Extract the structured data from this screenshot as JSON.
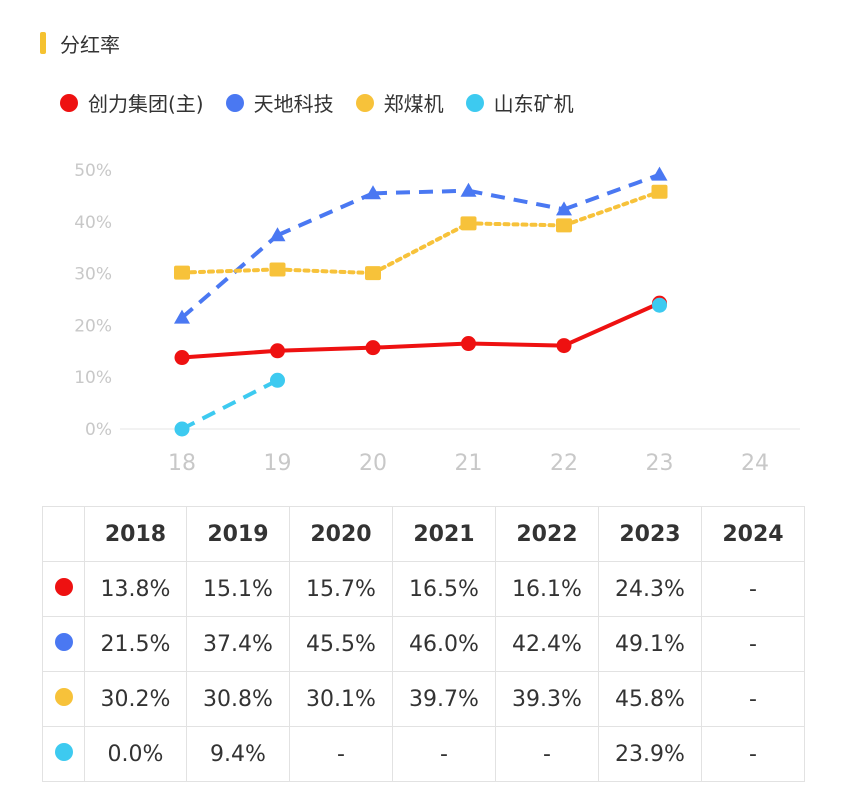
{
  "title": "分红率",
  "legend": [
    {
      "label": "创力集团(主)",
      "color": "#ee1111"
    },
    {
      "label": "天地科技",
      "color": "#4a78f2"
    },
    {
      "label": "郑煤机",
      "color": "#f7c23a"
    },
    {
      "label": "山东矿机",
      "color": "#3dcaf0"
    }
  ],
  "chart_data": {
    "type": "line",
    "x": [
      "18",
      "19",
      "20",
      "21",
      "22",
      "23",
      "24"
    ],
    "y_ticks": [
      "0%",
      "10%",
      "20%",
      "30%",
      "40%",
      "50%"
    ],
    "ylim": [
      0,
      50
    ],
    "grid": false,
    "legend_position": "top-left",
    "series": [
      {
        "name": "创力集团(主)",
        "color": "#ee1111",
        "style": "solid",
        "marker": "circle",
        "values": [
          13.8,
          15.1,
          15.7,
          16.5,
          16.1,
          24.3,
          null
        ]
      },
      {
        "name": "天地科技",
        "color": "#4a78f2",
        "style": "dashed",
        "marker": "triangle",
        "values": [
          21.5,
          37.4,
          45.5,
          46.0,
          42.4,
          49.1,
          null
        ]
      },
      {
        "name": "郑煤机",
        "color": "#f7c23a",
        "style": "dotted",
        "marker": "square",
        "values": [
          30.2,
          30.8,
          30.1,
          39.7,
          39.3,
          45.8,
          null
        ]
      },
      {
        "name": "山东矿机",
        "color": "#3dcaf0",
        "style": "dashed",
        "marker": "circle",
        "values": [
          0.0,
          9.4,
          null,
          null,
          null,
          23.9,
          null
        ]
      }
    ]
  },
  "table": {
    "headers": [
      "",
      "2018",
      "2019",
      "2020",
      "2021",
      "2022",
      "2023",
      "2024"
    ],
    "rows": [
      {
        "color": "#ee1111",
        "cells": [
          "13.8%",
          "15.1%",
          "15.7%",
          "16.5%",
          "16.1%",
          "24.3%",
          "-"
        ]
      },
      {
        "color": "#4a78f2",
        "cells": [
          "21.5%",
          "37.4%",
          "45.5%",
          "46.0%",
          "42.4%",
          "49.1%",
          "-"
        ]
      },
      {
        "color": "#f7c23a",
        "cells": [
          "30.2%",
          "30.8%",
          "30.1%",
          "39.7%",
          "39.3%",
          "45.8%",
          "-"
        ]
      },
      {
        "color": "#3dcaf0",
        "cells": [
          "0.0%",
          "9.4%",
          "-",
          "-",
          "-",
          "23.9%",
          "-"
        ]
      }
    ]
  }
}
